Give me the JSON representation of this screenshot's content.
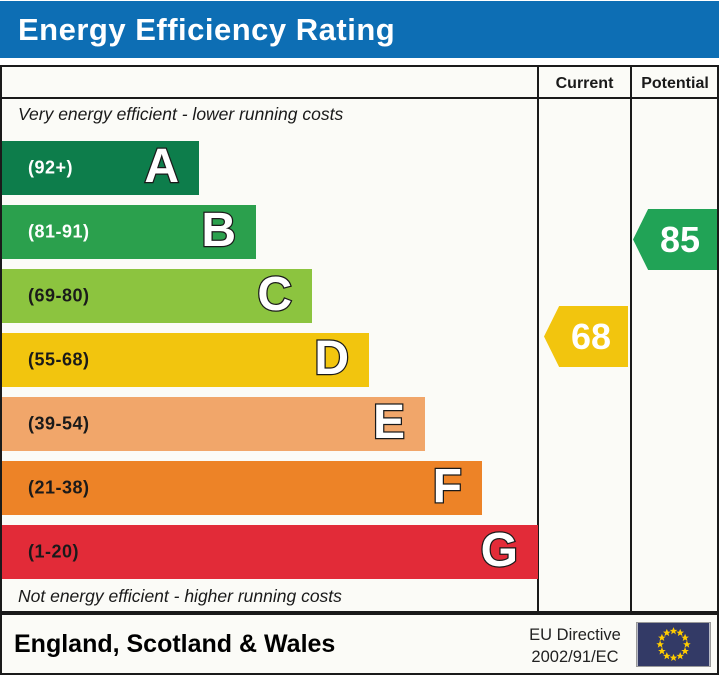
{
  "title": "Energy Efficiency Rating",
  "columns": {
    "current": "Current",
    "potential": "Potential"
  },
  "top_note": "Very energy efficient - lower running costs",
  "bottom_note": "Not energy efficient - higher running costs",
  "chart_data": {
    "type": "bar",
    "title": "Energy Efficiency Rating",
    "bands": [
      {
        "letter": "A",
        "range_label": "(92+)",
        "min": 92,
        "max": 100,
        "color": "#0d7d4b",
        "label_color": "#ffffff"
      },
      {
        "letter": "B",
        "range_label": "(81-91)",
        "min": 81,
        "max": 91,
        "color": "#2ba04d",
        "label_color": "#ffffff"
      },
      {
        "letter": "C",
        "range_label": "(69-80)",
        "min": 69,
        "max": 80,
        "color": "#8cc43f",
        "label_color": "#1a1a1a"
      },
      {
        "letter": "D",
        "range_label": "(55-68)",
        "min": 55,
        "max": 68,
        "color": "#f2c50e",
        "label_color": "#1a1a1a"
      },
      {
        "letter": "E",
        "range_label": "(39-54)",
        "min": 39,
        "max": 54,
        "color": "#f1a66a",
        "label_color": "#1a1a1a"
      },
      {
        "letter": "F",
        "range_label": "(21-38)",
        "min": 21,
        "max": 38,
        "color": "#ed8327",
        "label_color": "#1a1a1a"
      },
      {
        "letter": "G",
        "range_label": "(1-20)",
        "min": 1,
        "max": 20,
        "color": "#e22b38",
        "label_color": "#1a1a1a"
      }
    ],
    "current": {
      "value": 68,
      "band": "D",
      "color": "#f2c50e"
    },
    "potential": {
      "value": 85,
      "band": "B",
      "color": "#21a356"
    }
  },
  "footer": {
    "region_label": "England, Scotland & Wales",
    "directive_line1": "EU Directive",
    "directive_line2": "2002/91/EC",
    "eu_flag": {
      "background": "#333a66",
      "star_color": "#ffcc00",
      "stars": 12
    }
  },
  "theme": {
    "title_bar_color": "#0d6eb4",
    "border_color": "#1a1a1a"
  }
}
